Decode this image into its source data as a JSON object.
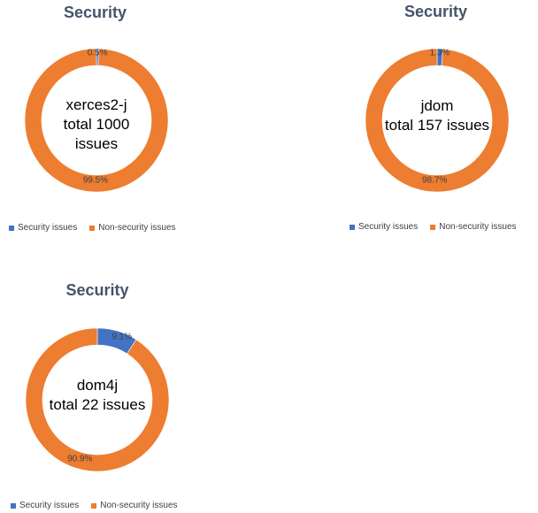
{
  "colors": {
    "security": "#4472c4",
    "non_security": "#ed7d31"
  },
  "chart_data": [
    {
      "type": "pie",
      "title": "Security",
      "center_lines": [
        "xerces2-j",
        "total 1000",
        "issues"
      ],
      "slices": [
        {
          "label": "Security issues",
          "value": 0.5,
          "value_label": "0.5%"
        },
        {
          "label": "Non-security issues",
          "value": 99.5,
          "value_label": "99.5%"
        }
      ],
      "legend": [
        "Security issues",
        "Non-security issues"
      ],
      "legend_position": "bottom"
    },
    {
      "type": "pie",
      "title": "Security",
      "center_lines": [
        "jdom",
        "total 157 issues"
      ],
      "slices": [
        {
          "label": "Security issues",
          "value": 1.3,
          "value_label": "1.3%"
        },
        {
          "label": "Non-security issues",
          "value": 98.7,
          "value_label": "98.7%"
        }
      ],
      "legend": [
        "Security issues",
        "Non-security issues"
      ],
      "legend_position": "bottom"
    },
    {
      "type": "pie",
      "title": "Security",
      "center_lines": [
        "dom4j",
        "total 22 issues"
      ],
      "slices": [
        {
          "label": "Security issues",
          "value": 9.1,
          "value_label": "9.1%"
        },
        {
          "label": "Non-security issues",
          "value": 90.9,
          "value_label": "90.9%"
        }
      ],
      "legend": [
        "Security issues",
        "Non-security issues"
      ],
      "legend_position": "bottom"
    }
  ]
}
